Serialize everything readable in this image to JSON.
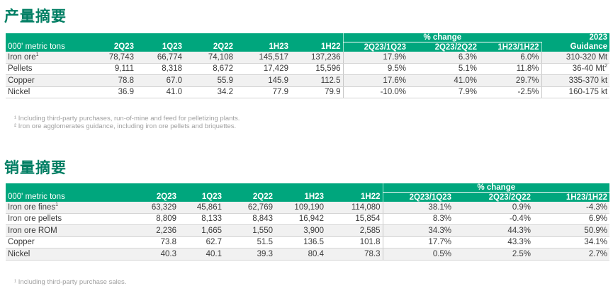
{
  "production": {
    "title": "产量摘要",
    "unit_label": "000' metric tons",
    "pct_change_label": "% change",
    "guidance_year": "2023",
    "guidance_label": "Guidance",
    "columns": [
      "2Q23",
      "1Q23",
      "2Q22",
      "1H23",
      "1H22",
      "2Q23/1Q23",
      "2Q23/2Q22",
      "1H23/1H22"
    ],
    "rows": [
      {
        "label": "Iron ore",
        "sup": "1",
        "values": [
          "78,743",
          "66,774",
          "74,108",
          "145,517",
          "137,236",
          "17.9%",
          "6.3%",
          "6.0%"
        ],
        "guidance": "310-320 Mt",
        "guidance_sup": ""
      },
      {
        "label": "Pellets",
        "sup": "",
        "values": [
          "9,111",
          "8,318",
          "8,672",
          "17,429",
          "15,596",
          "9.5%",
          "5.1%",
          "11.8%"
        ],
        "guidance": "36-40 Mt",
        "guidance_sup": "2"
      },
      {
        "label": "Copper",
        "sup": "",
        "values": [
          "78.8",
          "67.0",
          "55.9",
          "145.9",
          "112.5",
          "17.6%",
          "41.0%",
          "29.7%"
        ],
        "guidance": "335-370 kt",
        "guidance_sup": ""
      },
      {
        "label": "Nickel",
        "sup": "",
        "values": [
          "36.9",
          "41.0",
          "34.2",
          "77.9",
          "79.9",
          "-10.0%",
          "7.9%",
          "-2.5%"
        ],
        "guidance": "160-175 kt",
        "guidance_sup": ""
      }
    ],
    "footnotes": [
      "¹ Including third-party purchases, run-of-mine and feed for pelletizing plants.",
      "² Iron ore agglomerates guidance, including iron ore pellets and briquettes."
    ]
  },
  "sales": {
    "title": "销量摘要",
    "unit_label": "000' metric tons",
    "pct_change_label": "% change",
    "columns": [
      "2Q23",
      "1Q23",
      "2Q22",
      "1H23",
      "1H22",
      "2Q23/1Q23",
      "2Q23/2Q22",
      "1H23/1H22"
    ],
    "rows": [
      {
        "label": "Iron ore fines",
        "sup": "1",
        "values": [
          "63,329",
          "45,861",
          "62,769",
          "109,190",
          "114,080",
          "38.1%",
          "0.9%",
          "-4.3%"
        ]
      },
      {
        "label": "Iron ore pellets",
        "sup": "",
        "values": [
          "8,809",
          "8,133",
          "8,843",
          "16,942",
          "15,854",
          "8.3%",
          "-0.4%",
          "6.9%"
        ]
      },
      {
        "label": "Iron ore ROM",
        "sup": "",
        "values": [
          "2,236",
          "1,665",
          "1,550",
          "3,900",
          "2,585",
          "34.3%",
          "44.3%",
          "50.9%"
        ]
      },
      {
        "label": "Copper",
        "sup": "",
        "values": [
          "73.8",
          "62.7",
          "51.5",
          "136.5",
          "101.8",
          "17.7%",
          "43.3%",
          "34.1%"
        ]
      },
      {
        "label": "Nickel",
        "sup": "",
        "values": [
          "40.3",
          "40.1",
          "39.3",
          "80.4",
          "78.3",
          "0.5%",
          "2.5%",
          "2.7%"
        ]
      }
    ],
    "footnotes": [
      "¹ Including third-party purchase sales."
    ]
  },
  "colors": {
    "header_green": "#00a67d",
    "title_green": "#007e63",
    "footnote_gray": "#a0a0a0"
  }
}
